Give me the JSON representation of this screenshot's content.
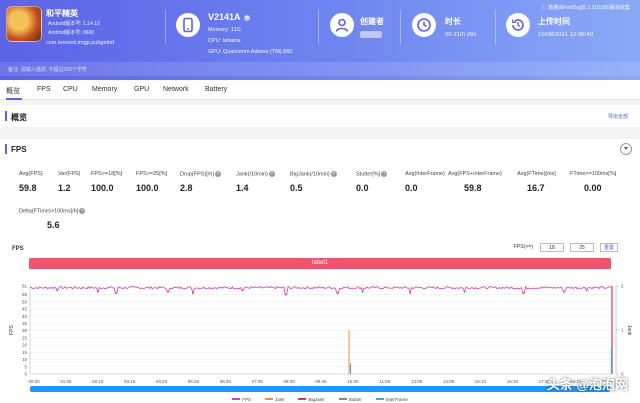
{
  "colors": {
    "accent": "#5b63e6",
    "label_band": "#f0566b",
    "fps_line": "#d63fb6",
    "jank": "#f08c3a",
    "bigjank": "#e0306a",
    "stutter": "#888888",
    "interframe": "#3aa6e8",
    "scrollbar": "#2196f3"
  },
  "header": {
    "app_name": "和平精英",
    "android_version": "Android版本号: 1.14.10",
    "android_code": "Android版本号: 9600",
    "package": "com.tencent.tmgp.pubgmhd",
    "device_name": "V2141A",
    "memory": "Memory: 11G",
    "cpu": "CPU: lahaina",
    "gpu": "GPU: Qualcomm Adreno (TM) 660",
    "creator_label": "创建者",
    "duration_label": "时长",
    "duration_value": "0h 21m 26s",
    "upload_label": "上传时间",
    "upload_value": "15/08/2021 12:48:40",
    "report_link": "数据由PerfDog(5.1.210300)版本收集",
    "info_bar": "备注: 请输入描述, 不超过200个字符"
  },
  "tabs": [
    "概览",
    "FPS",
    "CPU",
    "Memory",
    "GPU",
    "Network",
    "Battery"
  ],
  "overview": {
    "title": "概览",
    "export": "导出全部"
  },
  "fps_panel": {
    "title": "FPS",
    "metrics": [
      {
        "label": "Avg(FPS)",
        "value": "59.8"
      },
      {
        "label": "Var(FPS)",
        "value": "1.2"
      },
      {
        "label": "FPS>=18[%]",
        "value": "100.0"
      },
      {
        "label": "FPS>=25[%]",
        "value": "100.0"
      },
      {
        "label": "Drop(FPS)[/h]",
        "value": "2.8"
      },
      {
        "label": "Jank(/10min)",
        "value": "1.4"
      },
      {
        "label": "BigJank(/10min)",
        "value": "0.5"
      },
      {
        "label": "Stutter[%]",
        "value": "0.0"
      },
      {
        "label": "Avg(InterFrame)",
        "value": "0.0"
      },
      {
        "label": "Avg(FPS+InterFrame)",
        "value": "59.8"
      },
      {
        "label": "Avg(FTime)[ms]",
        "value": "16.7"
      },
      {
        "label": "FTime>=100ms[%]",
        "value": "0.00"
      },
      {
        "label": "Delta(FTime)>100ms[/h]",
        "value": "5.6"
      }
    ]
  },
  "chart_controls": {
    "title": "FPS",
    "range_label": "FPS(>=)",
    "min": "18",
    "max": "25",
    "reset": "重置"
  },
  "chart_data": {
    "type": "line",
    "label_band": "label1",
    "ylabel": "FPS",
    "ylabel_right": "Jank",
    "yticks": [
      0,
      5,
      10,
      15,
      20,
      25,
      30,
      35,
      40,
      45,
      50,
      55,
      61
    ],
    "yticks_right": [
      0,
      1,
      2
    ],
    "ylim": [
      0,
      61
    ],
    "ylim_right": [
      0,
      2
    ],
    "xticks": [
      "00:00",
      "01:05",
      "02:10",
      "03:15",
      "04:20",
      "05:25",
      "06:30",
      "07:35",
      "08:40",
      "09:45",
      "10:50",
      "11:55",
      "13:00",
      "14:05",
      "15:10",
      "16:15",
      "17:20",
      "18:25",
      "19:30"
    ],
    "xlim_seconds": [
      0,
      1286
    ],
    "series": [
      {
        "name": "FPS",
        "baseline": 59.8,
        "dips": [
          [
            60,
            58
          ],
          [
            150,
            57
          ],
          [
            190,
            56
          ],
          [
            305,
            57
          ],
          [
            360,
            56
          ],
          [
            470,
            58
          ],
          [
            565,
            55
          ],
          [
            680,
            56
          ],
          [
            735,
            57
          ],
          [
            840,
            56
          ],
          [
            960,
            57
          ],
          [
            1090,
            56
          ],
          [
            1180,
            57
          ],
          [
            1230,
            58
          ]
        ]
      },
      {
        "name": "Jank",
        "events": [
          [
            705,
            1
          ]
        ]
      },
      {
        "name": "BigJank",
        "events": [
          [
            1286,
            2
          ]
        ]
      },
      {
        "name": "Stutter",
        "events": []
      },
      {
        "name": "InterFrame",
        "events": [
          [
            706,
            0.8
          ]
        ]
      }
    ]
  },
  "watermark": "头条 @泡泡网"
}
